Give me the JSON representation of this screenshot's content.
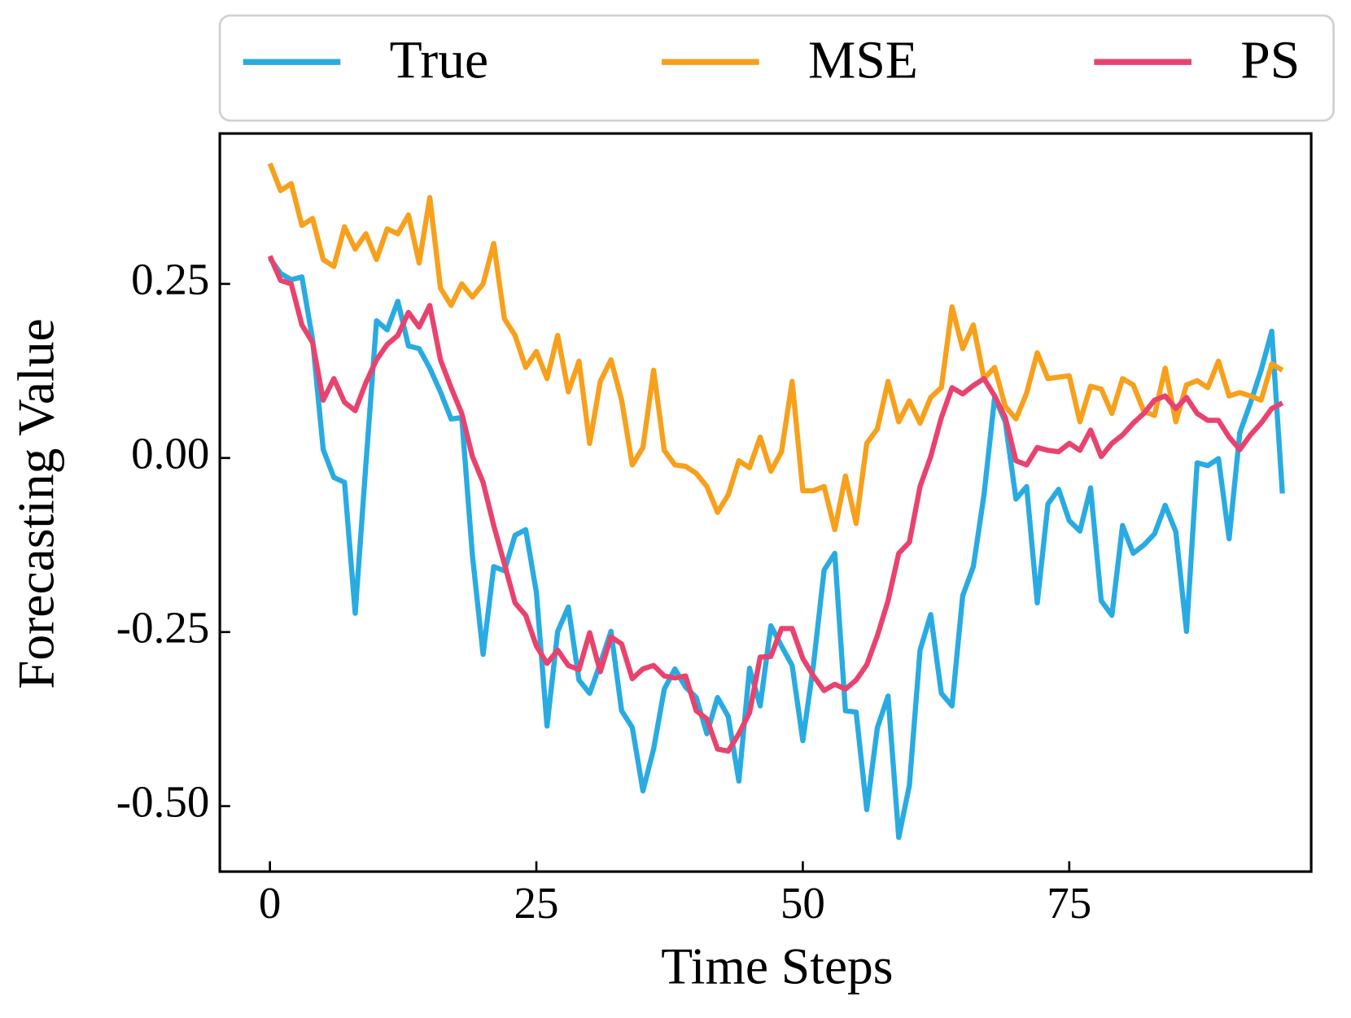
{
  "chart_data": {
    "type": "line",
    "xlabel": "Time Steps",
    "ylabel": "Forecasting Value",
    "x": [
      0,
      1,
      2,
      3,
      4,
      5,
      6,
      7,
      8,
      9,
      10,
      11,
      12,
      13,
      14,
      15,
      16,
      17,
      18,
      19,
      20,
      21,
      22,
      23,
      24,
      25,
      26,
      27,
      28,
      29,
      30,
      31,
      32,
      33,
      34,
      35,
      36,
      37,
      38,
      39,
      40,
      41,
      42,
      43,
      44,
      45,
      46,
      47,
      48,
      49,
      50,
      51,
      52,
      53,
      54,
      55,
      56,
      57,
      58,
      59,
      60,
      61,
      62,
      63,
      64,
      65,
      66,
      67,
      68,
      69,
      70,
      71,
      72,
      73,
      74,
      75,
      76,
      77,
      78,
      79,
      80,
      81,
      82,
      83,
      84,
      85,
      86,
      87,
      88,
      89,
      90,
      91,
      92,
      93,
      94,
      95
    ],
    "series": [
      {
        "name": "True",
        "color": "#29abe2",
        "values": [
          0.287,
          0.265,
          0.256,
          0.26,
          0.17,
          0.012,
          -0.028,
          -0.035,
          -0.223,
          -0.01,
          0.197,
          0.184,
          0.225,
          0.161,
          0.157,
          0.129,
          0.095,
          0.056,
          0.058,
          -0.14,
          -0.282,
          -0.156,
          -0.162,
          -0.111,
          -0.103,
          -0.193,
          -0.385,
          -0.249,
          -0.214,
          -0.319,
          -0.338,
          -0.295,
          -0.249,
          -0.363,
          -0.387,
          -0.478,
          -0.418,
          -0.332,
          -0.303,
          -0.329,
          -0.344,
          -0.396,
          -0.344,
          -0.371,
          -0.464,
          -0.302,
          -0.356,
          -0.241,
          -0.27,
          -0.298,
          -0.406,
          -0.297,
          -0.161,
          -0.137,
          -0.363,
          -0.365,
          -0.505,
          -0.387,
          -0.342,
          -0.545,
          -0.47,
          -0.276,
          -0.225,
          -0.338,
          -0.356,
          -0.198,
          -0.156,
          -0.053,
          0.087,
          0.052,
          -0.059,
          -0.041,
          -0.208,
          -0.066,
          -0.045,
          -0.09,
          -0.105,
          -0.043,
          -0.205,
          -0.226,
          -0.097,
          -0.137,
          -0.125,
          -0.109,
          -0.068,
          -0.106,
          -0.249,
          -0.007,
          -0.011,
          -0.001,
          -0.116,
          0.036,
          0.079,
          0.126,
          0.182,
          -0.051
        ]
      },
      {
        "name": "MSE",
        "color": "#f7a01c",
        "values": [
          0.423,
          0.384,
          0.394,
          0.334,
          0.344,
          0.285,
          0.275,
          0.332,
          0.3,
          0.322,
          0.285,
          0.329,
          0.322,
          0.349,
          0.28,
          0.374,
          0.244,
          0.219,
          0.25,
          0.231,
          0.25,
          0.308,
          0.2,
          0.176,
          0.13,
          0.153,
          0.114,
          0.176,
          0.095,
          0.139,
          0.021,
          0.11,
          0.141,
          0.083,
          -0.01,
          0.015,
          0.126,
          0.011,
          -0.01,
          -0.012,
          -0.022,
          -0.041,
          -0.078,
          -0.053,
          -0.004,
          -0.014,
          0.03,
          -0.019,
          0.009,
          0.11,
          -0.047,
          -0.047,
          -0.041,
          -0.103,
          -0.026,
          -0.094,
          0.021,
          0.042,
          0.11,
          0.052,
          0.082,
          0.05,
          0.087,
          0.101,
          0.217,
          0.157,
          0.191,
          0.114,
          0.13,
          0.074,
          0.056,
          0.093,
          0.151,
          0.114,
          0.116,
          0.118,
          0.052,
          0.103,
          0.099,
          0.064,
          0.114,
          0.105,
          0.067,
          0.061,
          0.129,
          0.052,
          0.105,
          0.111,
          0.101,
          0.139,
          0.089,
          0.094,
          0.089,
          0.083,
          0.135,
          0.126
        ]
      },
      {
        "name": "PS",
        "color": "#e8436e",
        "values": [
          0.29,
          0.255,
          0.25,
          0.191,
          0.166,
          0.083,
          0.114,
          0.08,
          0.068,
          0.108,
          0.141,
          0.163,
          0.176,
          0.209,
          0.188,
          0.219,
          0.141,
          0.101,
          0.064,
          0.002,
          -0.035,
          -0.097,
          -0.152,
          -0.208,
          -0.226,
          -0.27,
          -0.295,
          -0.276,
          -0.298,
          -0.304,
          -0.251,
          -0.307,
          -0.257,
          -0.267,
          -0.317,
          -0.303,
          -0.298,
          -0.313,
          -0.316,
          -0.313,
          -0.363,
          -0.375,
          -0.418,
          -0.421,
          -0.396,
          -0.366,
          -0.286,
          -0.285,
          -0.245,
          -0.245,
          -0.288,
          -0.313,
          -0.334,
          -0.325,
          -0.332,
          -0.319,
          -0.297,
          -0.255,
          -0.205,
          -0.137,
          -0.121,
          -0.041,
          0.002,
          0.058,
          0.101,
          0.092,
          0.104,
          0.114,
          0.089,
          0.058,
          -0.004,
          -0.01,
          0.015,
          0.011,
          0.009,
          0.021,
          0.011,
          0.04,
          0.002,
          0.021,
          0.033,
          0.05,
          0.064,
          0.083,
          0.089,
          0.071,
          0.087,
          0.064,
          0.054,
          0.054,
          0.03,
          0.012,
          0.033,
          0.05,
          0.071,
          0.079
        ]
      }
    ],
    "xlim": [
      -4.7,
      97.7
    ],
    "ylim": [
      -0.594,
      0.466
    ],
    "xticks": [
      0,
      25,
      50,
      75
    ],
    "yticks": [
      {
        "value": 0.25,
        "label": "0.25"
      },
      {
        "value": 0,
        "label": "0.00"
      },
      {
        "value": -0.25,
        "label": "-0.25"
      },
      {
        "value": -0.5,
        "label": "-0.50"
      }
    ],
    "grid": false,
    "legend": "top"
  }
}
